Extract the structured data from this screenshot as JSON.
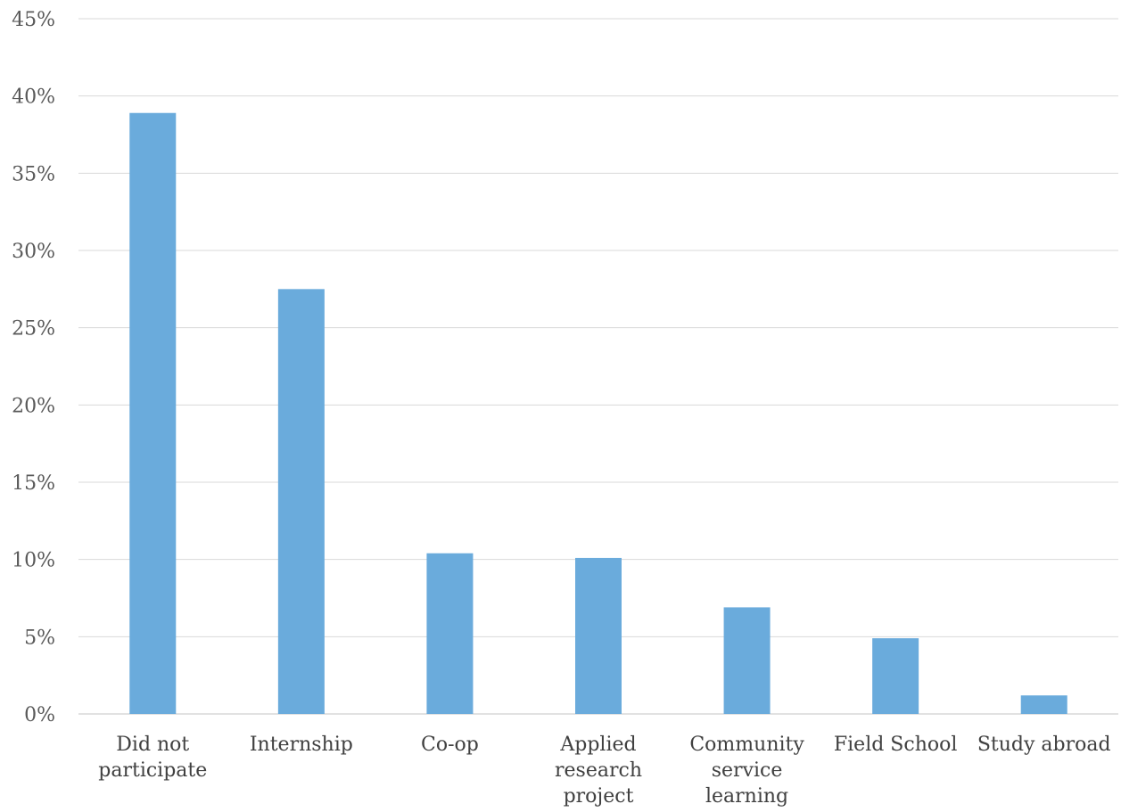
{
  "chart_data": {
    "type": "bar",
    "title": "",
    "xlabel": "",
    "ylabel": "",
    "categories": [
      [
        "Did not",
        "participate"
      ],
      [
        "Internship"
      ],
      [
        "Co-op"
      ],
      [
        "Applied",
        "research",
        "project"
      ],
      [
        "Community",
        "service",
        "learning"
      ],
      [
        "Field School"
      ],
      [
        "Study abroad"
      ]
    ],
    "values": [
      38.9,
      27.5,
      10.4,
      10.1,
      6.9,
      4.9,
      1.2
    ],
    "ylim": [
      0,
      45
    ],
    "yticks": [
      0,
      5,
      10,
      15,
      20,
      25,
      30,
      35,
      40,
      45
    ],
    "ytick_labels": [
      "0%",
      "5%",
      "10%",
      "15%",
      "20%",
      "25%",
      "30%",
      "35%",
      "40%",
      "45%"
    ],
    "grid": true,
    "legend": "none",
    "bar_color": "#6aabdc"
  }
}
